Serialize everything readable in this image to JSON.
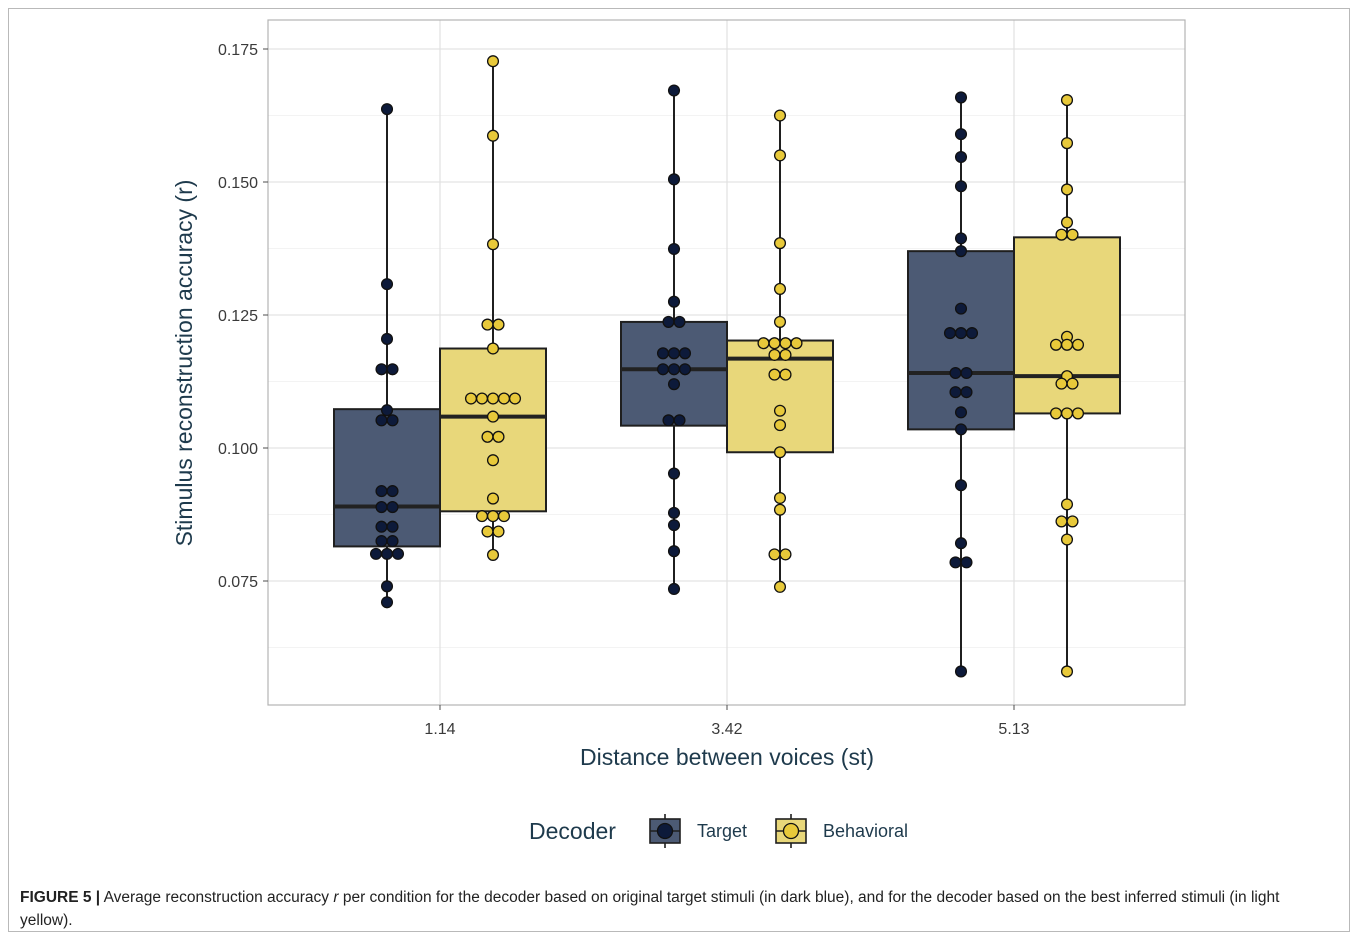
{
  "chart_data": {
    "type": "box",
    "xlabel": "Distance between voices (st)",
    "ylabel": "Stimulus reconstruction accuracy (r)",
    "categories": [
      "1.14",
      "3.42",
      "5.13"
    ],
    "ylim": [
      0.055,
      0.177
    ],
    "yticks": [
      0.075,
      0.1,
      0.125,
      0.15,
      0.175
    ],
    "ytick_labels": [
      "0.075",
      "0.100",
      "0.125",
      "0.150",
      "0.175"
    ],
    "grid": true,
    "legend": {
      "title": "Decoder",
      "position": "bottom",
      "entries": [
        "Target",
        "Behavioral"
      ]
    },
    "series": [
      {
        "name": "Target",
        "fill": "#4c5a74",
        "point_color": "#0d1a3a",
        "boxes": [
          {
            "min": 0.071,
            "q1": 0.0815,
            "median": 0.089,
            "q3": 0.1073,
            "max": 0.1637
          },
          {
            "min": 0.0735,
            "q1": 0.1042,
            "median": 0.1148,
            "q3": 0.1237,
            "max": 0.1672
          },
          {
            "min": 0.058,
            "q1": 0.1035,
            "median": 0.1141,
            "q3": 0.137,
            "max": 0.1659
          }
        ],
        "points": [
          [
            0.1637,
            0.1308,
            0.1205,
            0.1148,
            0.1148,
            0.1071,
            0.1052,
            0.1052,
            0.0919,
            0.0919,
            0.0889,
            0.0889,
            0.0852,
            0.0852,
            0.0825,
            0.0825,
            0.0801,
            0.0801,
            0.0801,
            0.074,
            0.071
          ],
          [
            0.1672,
            0.1505,
            0.1374,
            0.1275,
            0.1237,
            0.1237,
            0.1178,
            0.1178,
            0.1178,
            0.1148,
            0.1148,
            0.1148,
            0.112,
            0.1052,
            0.1052,
            0.0952,
            0.0878,
            0.0855,
            0.0806,
            0.0735
          ],
          [
            0.1659,
            0.159,
            0.1547,
            0.1492,
            0.1394,
            0.137,
            0.1262,
            0.1216,
            0.1216,
            0.1216,
            0.1141,
            0.1141,
            0.1105,
            0.1105,
            0.1067,
            0.1035,
            0.093,
            0.0821,
            0.0785,
            0.0785,
            0.058
          ]
        ]
      },
      {
        "name": "Behavioral",
        "fill": "#e8d77a",
        "point_color": "#e8c93a",
        "boxes": [
          {
            "min": 0.0799,
            "q1": 0.0881,
            "median": 0.1059,
            "q3": 0.1187,
            "max": 0.1727
          },
          {
            "min": 0.0739,
            "q1": 0.0992,
            "median": 0.1168,
            "q3": 0.1202,
            "max": 0.1625
          },
          {
            "min": 0.058,
            "q1": 0.1065,
            "median": 0.1135,
            "q3": 0.1396,
            "max": 0.1654
          }
        ],
        "points": [
          [
            0.1727,
            0.1587,
            0.1383,
            0.1232,
            0.1232,
            0.1187,
            0.1093,
            0.1093,
            0.1093,
            0.1093,
            0.1093,
            0.1059,
            0.1021,
            0.1021,
            0.0977,
            0.0905,
            0.0872,
            0.0872,
            0.0872,
            0.0843,
            0.0843,
            0.0799
          ],
          [
            0.1625,
            0.155,
            0.1385,
            0.1299,
            0.1237,
            0.1197,
            0.1197,
            0.1197,
            0.1197,
            0.1175,
            0.1175,
            0.1138,
            0.1138,
            0.107,
            0.1043,
            0.0992,
            0.0906,
            0.0884,
            0.08,
            0.08,
            0.0739
          ],
          [
            0.1654,
            0.1573,
            0.1486,
            0.1424,
            0.1401,
            0.1401,
            0.1209,
            0.1194,
            0.1194,
            0.1194,
            0.1135,
            0.1121,
            0.1121,
            0.1065,
            0.1065,
            0.1065,
            0.0894,
            0.0862,
            0.0862,
            0.0828,
            0.058
          ]
        ]
      }
    ]
  },
  "caption": {
    "label": "FIGURE 5 |",
    "text_before": " Average reconstruction accuracy ",
    "r_symbol": "r",
    "text_after": " per condition for the decoder based on original target stimuli (in dark blue), and for the decoder based on the best inferred stimuli (in light yellow)."
  }
}
